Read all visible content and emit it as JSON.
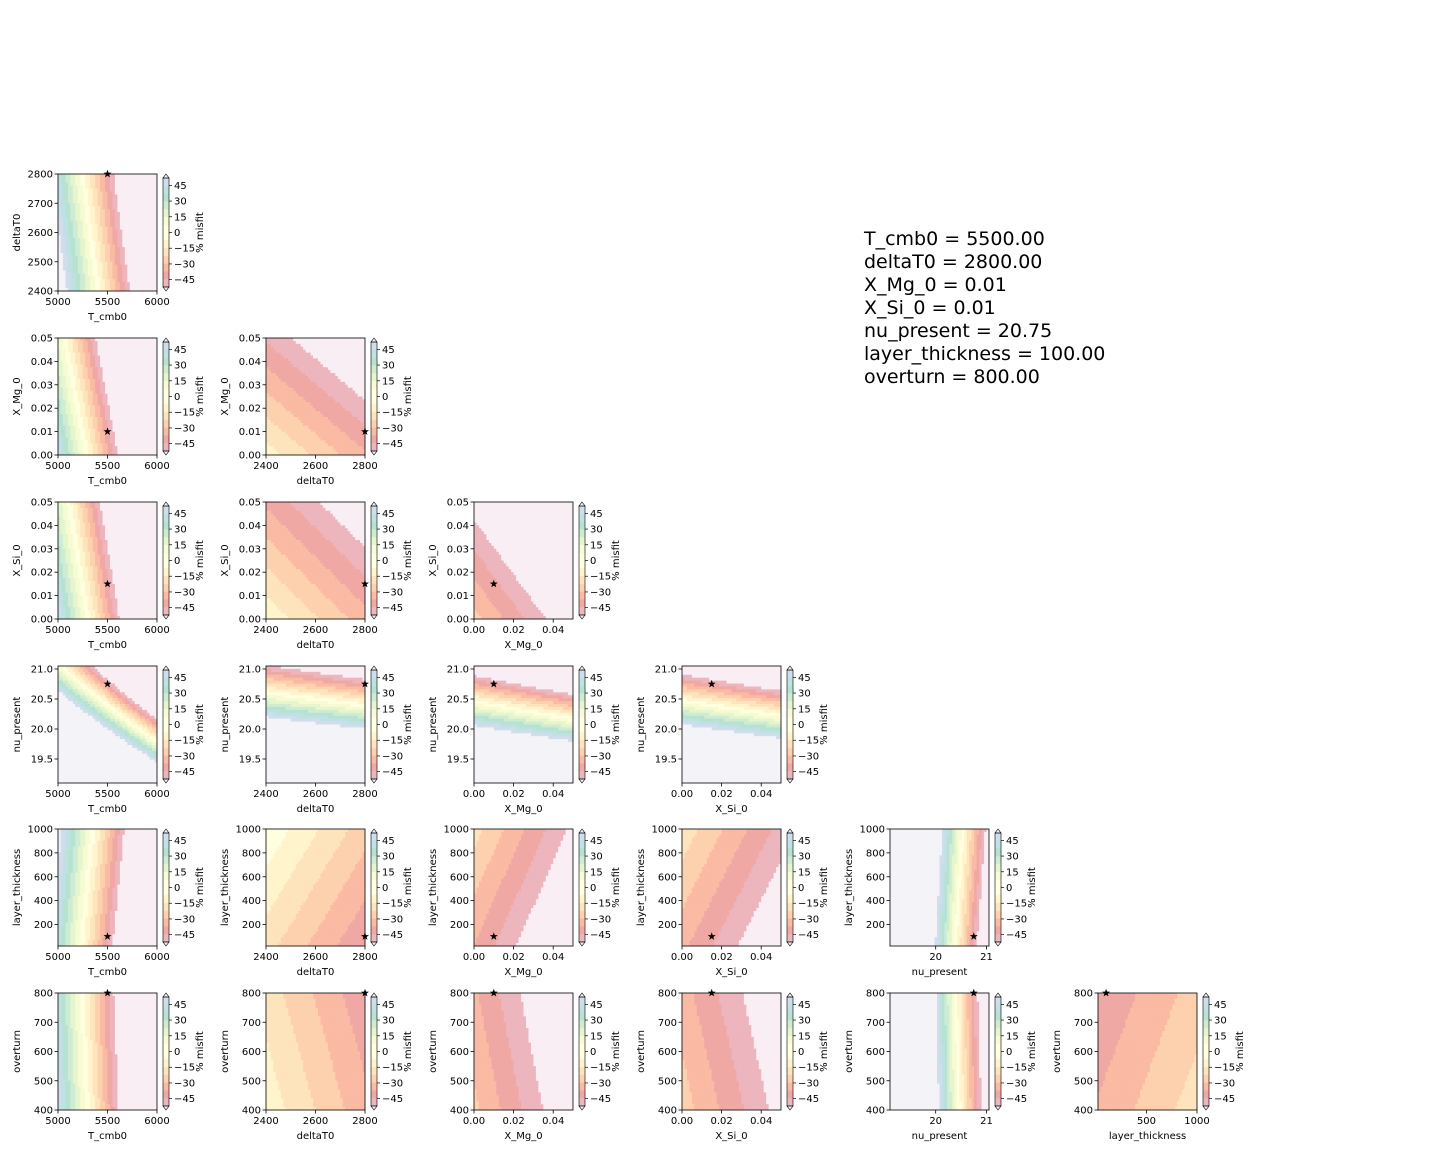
{
  "colorbar": {
    "label": "% misfit",
    "ticks": [
      45,
      30,
      15,
      0,
      -15,
      -30,
      -45
    ],
    "range": [
      -52,
      52
    ],
    "colormap": [
      "#c2a5cf",
      "#92c5de",
      "#66c2a5",
      "#abdda4",
      "#e6f598",
      "#ffffbf",
      "#fee08b",
      "#fdae61",
      "#f46d43",
      "#d53e4f",
      "#e7c6d6"
    ]
  },
  "params_text": [
    "T_cmb0 = 5500.00",
    "deltaT0 = 2800.00",
    "X_Mg_0 = 0.01",
    "X_Si_0 = 0.01",
    "nu_present = 20.75",
    "layer_thickness = 100.00",
    "overturn = 800.00"
  ],
  "chart_data": {
    "type": "heatmap",
    "variables": [
      {
        "name": "T_cmb0",
        "range": [
          5000,
          6000
        ],
        "ticks": [
          5000,
          5500,
          6000
        ],
        "tick_labels": [
          "5000",
          "5500",
          "6000"
        ],
        "best": 5500
      },
      {
        "name": "deltaT0",
        "range": [
          2400,
          2800
        ],
        "ticks": [
          2400,
          2500,
          2600,
          2700,
          2800
        ],
        "tick_labels": [
          "2400",
          "2500",
          "2600",
          "2700",
          "2800"
        ],
        "xticks": [
          2400,
          2600,
          2800
        ],
        "xtick_labels": [
          "2400",
          "2600",
          "2800"
        ],
        "best": 2800
      },
      {
        "name": "X_Mg_0",
        "range": [
          0,
          0.05
        ],
        "ticks": [
          0,
          0.01,
          0.02,
          0.03,
          0.04,
          0.05
        ],
        "tick_labels": [
          "0.00",
          "0.01",
          "0.02",
          "0.03",
          "0.04",
          "0.05"
        ],
        "xticks": [
          0,
          0.02,
          0.04
        ],
        "xtick_labels": [
          "0.00",
          "0.02",
          "0.04"
        ],
        "best": 0.01
      },
      {
        "name": "X_Si_0",
        "range": [
          0,
          0.05
        ],
        "ticks": [
          0,
          0.01,
          0.02,
          0.03,
          0.04,
          0.05
        ],
        "tick_labels": [
          "0.00",
          "0.01",
          "0.02",
          "0.03",
          "0.04",
          "0.05"
        ],
        "xticks": [
          0,
          0.02,
          0.04
        ],
        "xtick_labels": [
          "0.00",
          "0.02",
          "0.04"
        ],
        "best": 0.015
      },
      {
        "name": "nu_present",
        "range": [
          19.1,
          21.05
        ],
        "ticks": [
          19.5,
          20.0,
          20.5,
          21.0
        ],
        "tick_labels": [
          "19.5",
          "20.0",
          "20.5",
          "21.0"
        ],
        "xticks": [
          20,
          21
        ],
        "xtick_labels": [
          "20",
          "21"
        ],
        "best": 20.75
      },
      {
        "name": "layer_thickness",
        "range": [
          20,
          1000
        ],
        "ticks": [
          200,
          400,
          600,
          800,
          1000
        ],
        "tick_labels": [
          "200",
          "400",
          "600",
          "800",
          "1000"
        ],
        "xticks": [
          500,
          1000
        ],
        "xtick_labels": [
          "500",
          "1000"
        ],
        "best": 100
      },
      {
        "name": "overturn",
        "range": [
          400,
          800
        ],
        "ticks": [
          400,
          500,
          600,
          700,
          800
        ],
        "tick_labels": [
          "400",
          "500",
          "600",
          "700",
          "800"
        ],
        "best": 800
      }
    ],
    "panels_layout": "lower-triangle corner plot; row r (y variable r+1) vs column c (x variable c) for c <= r",
    "star": "best-fit point marked with black star in each panel"
  }
}
